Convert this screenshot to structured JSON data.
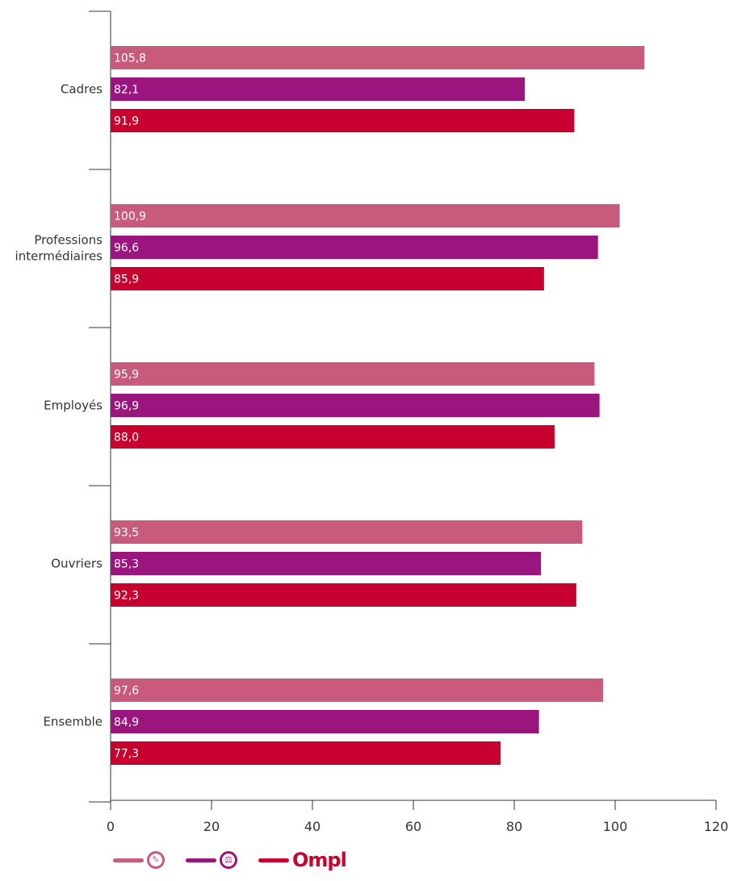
{
  "chart_data": {
    "type": "bar",
    "orientation": "horizontal",
    "categories": [
      "Cadres",
      "Professions intermédiaires",
      "Employés",
      "Ouvriers",
      "Ensemble"
    ],
    "series": [
      {
        "values": [
          105.8,
          100.9,
          95.9,
          93.5,
          97.6
        ],
        "color": "#c85a7c"
      },
      {
        "values": [
          82.1,
          96.6,
          96.9,
          85.3,
          84.9
        ],
        "color": "#9b157f"
      },
      {
        "values": [
          91.9,
          85.9,
          88.0,
          92.3,
          77.3
        ],
        "color": "#c8002f"
      }
    ],
    "value_labels": [
      [
        "105,8",
        "100,9",
        "95,9",
        "93,5",
        "97,6"
      ],
      [
        "82,1",
        "96,6",
        "96,9",
        "85,3",
        "84,9"
      ],
      [
        "91,9",
        "85,9",
        "88,0",
        "92,3",
        "77,3"
      ]
    ],
    "x_ticks": [
      "0",
      "20",
      "40",
      "60",
      "80",
      "100",
      "120"
    ],
    "xlim": [
      0,
      120
    ],
    "grid": false,
    "legend": {
      "placement": "bottom-left",
      "items": [
        {
          "icon": "brush-icon",
          "color": "#c85a7c"
        },
        {
          "icon": "scales-icon",
          "color": "#9b157f"
        },
        {
          "icon": "ompl-logo",
          "text": "Ompl",
          "color": "#c8002f"
        }
      ]
    }
  }
}
